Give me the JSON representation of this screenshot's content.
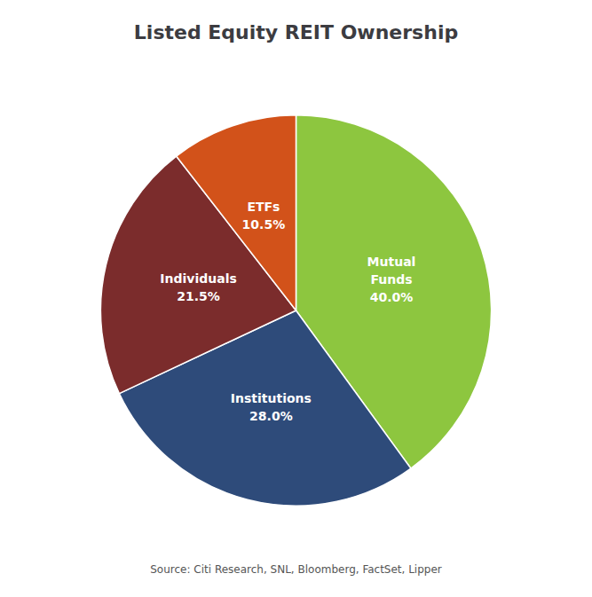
{
  "chart_data": {
    "type": "pie",
    "title": "Listed Equity REIT Ownership",
    "categories": [
      "Mutual\nFunds",
      "Institutions",
      "Individuals",
      "ETFs"
    ],
    "values": [
      40.0,
      28.0,
      21.5,
      10.5
    ],
    "value_labels": [
      "40.0%",
      "28.0%",
      "21.5%",
      "10.5%"
    ],
    "colors": [
      "#8dc63f",
      "#2e4b7a",
      "#7b2c2c",
      "#d2521a"
    ],
    "annotation": "Source: Citi Research, SNL, Bloomberg, FactSet, Lipper",
    "data_labels": true,
    "legend": false
  }
}
